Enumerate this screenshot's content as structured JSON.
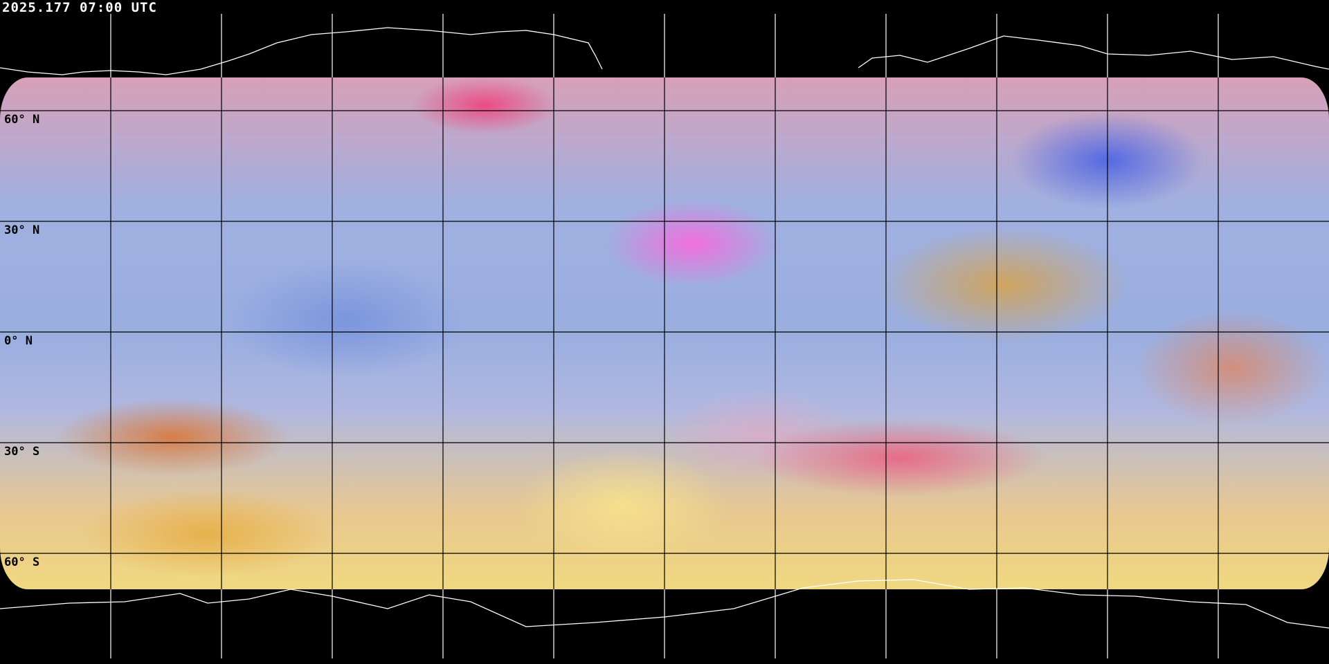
{
  "header": {
    "timestamp": "2025.177 07:00 UTC"
  },
  "map": {
    "projection": "equirectangular",
    "product": "satellite false-color composite",
    "graticule_lon_step_deg": 30,
    "graticule_lat_step_deg": 30,
    "latitude_labels": [
      "60° N",
      "30° N",
      "0° N",
      "30° S",
      "60° S"
    ],
    "coastline_color_polar": "#ffffff",
    "coastline_color_imagery": "#000000"
  }
}
